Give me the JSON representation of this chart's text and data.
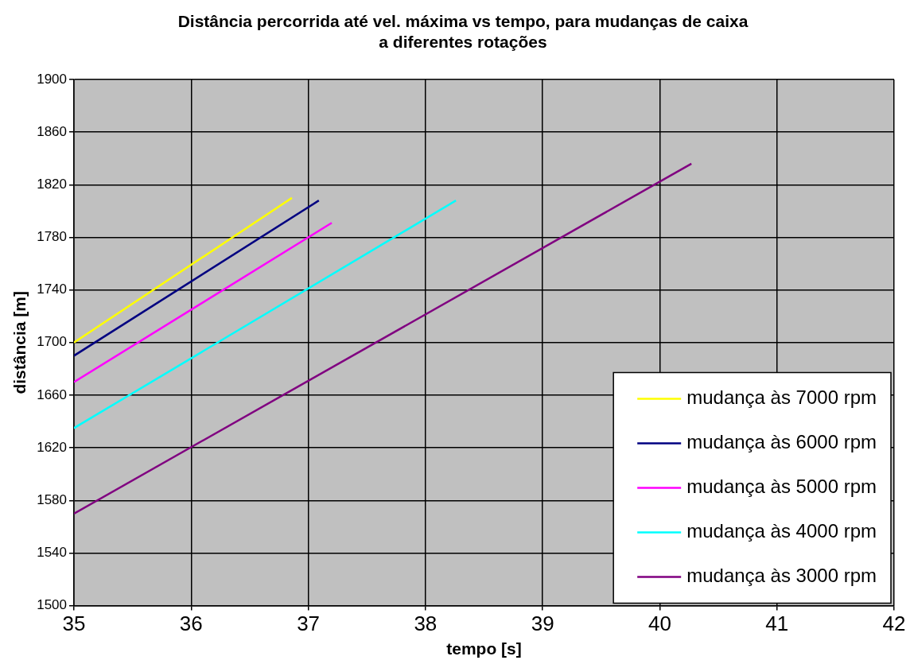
{
  "chart_data": {
    "type": "line",
    "title": "Distância percorrida até vel. máxima vs tempo, para mudanças de caixa a diferentes rotações",
    "xlabel": "tempo [s]",
    "ylabel": "distância [m]",
    "xlim": [
      35,
      42
    ],
    "xticks": [
      35,
      36,
      37,
      38,
      39,
      40,
      41,
      42
    ],
    "ylim": [
      1500,
      1900
    ],
    "yticks": [
      1500,
      1540,
      1580,
      1620,
      1660,
      1700,
      1740,
      1780,
      1820,
      1860,
      1900
    ],
    "grid": true,
    "legend": "bottom right",
    "marker": "none",
    "line_style": "solid",
    "series": [
      {
        "name": "mudança às 7000 rpm",
        "color": "#ffff00",
        "x": [
          35,
          36.86
        ],
        "values": [
          1700,
          1810
        ]
      },
      {
        "name": "mudança às 6000 rpm",
        "color": "#000080",
        "x": [
          35,
          37.09
        ],
        "values": [
          1690,
          1808
        ]
      },
      {
        "name": "mudança às 5000 rpm",
        "color": "#ff00ff",
        "x": [
          35,
          37.2
        ],
        "values": [
          1670,
          1791
        ]
      },
      {
        "name": "mudança às 4000 rpm",
        "color": "#00ffff",
        "x": [
          35,
          38.26
        ],
        "values": [
          1635,
          1808
        ]
      },
      {
        "name": "mudança às 3000 rpm",
        "color": "#800080",
        "x": [
          35,
          40.27
        ],
        "values": [
          1570,
          1836
        ]
      }
    ]
  }
}
